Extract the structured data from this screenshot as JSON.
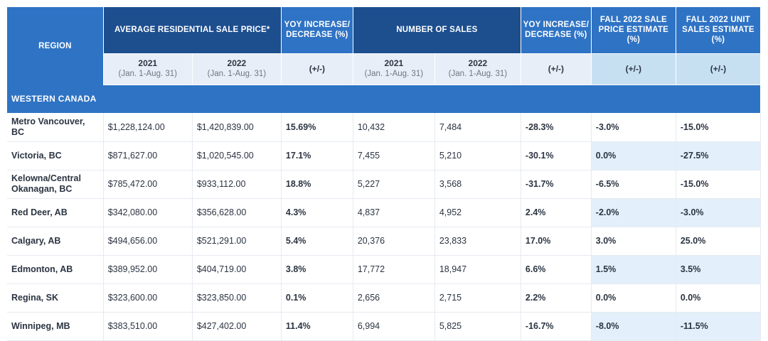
{
  "header": {
    "region": "REGION",
    "avg_price": "AVERAGE RESIDENTIAL SALE PRICE*",
    "yoy1": "YOY INCREASE/ DECREASE (%)",
    "num_sales": "NUMBER OF SALES",
    "yoy2": "YOY INCREASE/ DECREASE (%)",
    "fall_price": "FALL 2022 SALE PRICE ESTIMATE (%)",
    "fall_units": "FALL 2022 UNIT SALES ESTIMATE (%)",
    "y2021": "2021",
    "y2022": "2022",
    "range": "(Jan. 1-Aug. 31)",
    "pm": "(+/-)"
  },
  "section_title": "WESTERN CANADA",
  "rows": [
    {
      "region": "Metro Vancouver, BC",
      "p2021": "$1,228,124.00",
      "p2022": "$1,420,839.00",
      "yoy1": "15.69%",
      "s2021": "10,432",
      "s2022": "7,484",
      "yoy2": "-28.3%",
      "fall_price": "-3.0%",
      "fall_units": "-15.0%"
    },
    {
      "region": "Victoria, BC",
      "p2021": "$871,627.00",
      "p2022": "$1,020,545.00",
      "yoy1": "17.1%",
      "s2021": "7,455",
      "s2022": "5,210",
      "yoy2": "-30.1%",
      "fall_price": "0.0%",
      "fall_units": "-27.5%"
    },
    {
      "region": "Kelowna/Central Okanagan, BC",
      "p2021": "$785,472.00",
      "p2022": "$933,112.00",
      "yoy1": "18.8%",
      "s2021": "5,227",
      "s2022": "3,568",
      "yoy2": "-31.7%",
      "fall_price": "-6.5%",
      "fall_units": "-15.0%"
    },
    {
      "region": "Red Deer, AB",
      "p2021": "$342,080.00",
      "p2022": "$356,628.00",
      "yoy1": "4.3%",
      "s2021": "4,837",
      "s2022": "4,952",
      "yoy2": "2.4%",
      "fall_price": "-2.0%",
      "fall_units": "-3.0%"
    },
    {
      "region": "Calgary, AB",
      "p2021": "$494,656.00",
      "p2022": "$521,291.00",
      "yoy1": "5.4%",
      "s2021": "20,376",
      "s2022": "23,833",
      "yoy2": "17.0%",
      "fall_price": "3.0%",
      "fall_units": "25.0%"
    },
    {
      "region": "Edmonton, AB",
      "p2021": "$389,952.00",
      "p2022": "$404,719.00",
      "yoy1": "3.8%",
      "s2021": "17,772",
      "s2022": "18,947",
      "yoy2": "6.6%",
      "fall_price": "1.5%",
      "fall_units": "3.5%"
    },
    {
      "region": "Regina, SK",
      "p2021": "$323,600.00",
      "p2022": "$323,850.00",
      "yoy1": "0.1%",
      "s2021": "2,656",
      "s2022": "2,715",
      "yoy2": "2.2%",
      "fall_price": "0.0%",
      "fall_units": "0.0%"
    },
    {
      "region": "Winnipeg, MB",
      "p2021": "$383,510.00",
      "p2022": "$427,402.00",
      "yoy1": "11.4%",
      "s2021": "6,994",
      "s2022": "5,825",
      "yoy2": "-16.7%",
      "fall_price": "-8.0%",
      "fall_units": "-11.5%"
    }
  ]
}
